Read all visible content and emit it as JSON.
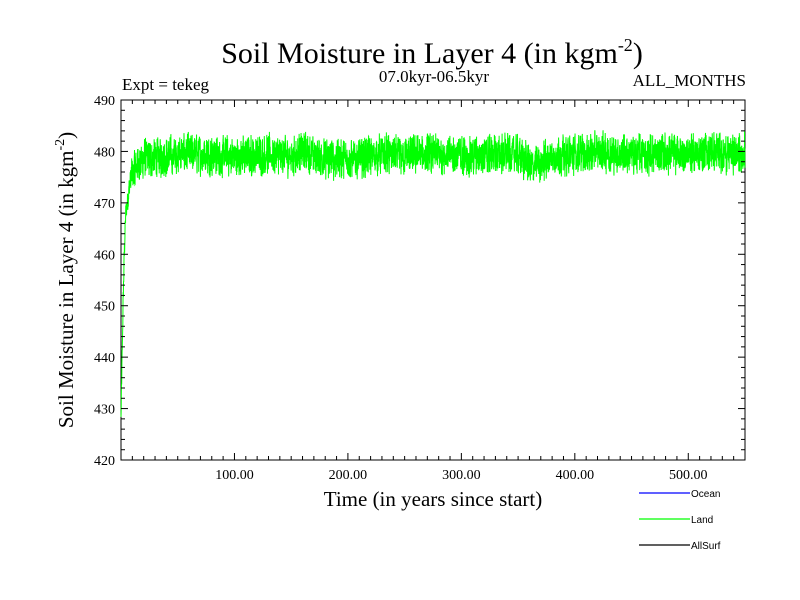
{
  "chart_data": {
    "type": "line",
    "title": "Soil Moisture in Layer 4 (in kgm",
    "title_superscript": "-2",
    "title_close": ")",
    "expt_label": "Expt = tekeg",
    "period_label": "07.0kyr-06.5kyr",
    "months_label": "ALL_MONTHS",
    "xlabel": "Time (in years since start)",
    "ylabel": "Soil Moisture in Layer 4 (in kgm",
    "ylabel_superscript": "-2",
    "ylabel_close": ")",
    "xlim": [
      0,
      550
    ],
    "ylim": [
      420,
      490
    ],
    "xticks": [
      {
        "value": 100,
        "label": "100.00"
      },
      {
        "value": 200,
        "label": "200.00"
      },
      {
        "value": 300,
        "label": "300.00"
      },
      {
        "value": 400,
        "label": "400.00"
      },
      {
        "value": 500,
        "label": "500.00"
      }
    ],
    "yticks": [
      {
        "value": 420,
        "label": "420"
      },
      {
        "value": 430,
        "label": "430"
      },
      {
        "value": 440,
        "label": "440"
      },
      {
        "value": 450,
        "label": "450"
      },
      {
        "value": 460,
        "label": "460"
      },
      {
        "value": 470,
        "label": "470"
      },
      {
        "value": 480,
        "label": "480"
      },
      {
        "value": 490,
        "label": "490"
      }
    ],
    "legend": [
      {
        "name": "Ocean",
        "color": "#0000ff"
      },
      {
        "name": "Land",
        "color": "#00ff00"
      },
      {
        "name": "AllSurf",
        "color": "#000000"
      }
    ],
    "series": [
      {
        "name": "Land",
        "color": "#00ff00",
        "x": [
          0,
          1,
          2,
          3,
          4,
          6,
          8,
          10,
          13,
          16,
          20,
          25,
          30,
          40,
          50,
          60,
          75,
          90,
          110,
          130,
          150,
          160,
          180,
          200,
          215,
          230,
          250,
          270,
          290,
          310,
          330,
          350,
          362,
          380,
          400,
          420,
          440,
          460,
          480,
          500,
          520,
          540,
          550
        ],
        "values": [
          428,
          440,
          452,
          461,
          467,
          471,
          474,
          476,
          477,
          478,
          478.5,
          478.5,
          479,
          479,
          479.5,
          479.5,
          479.5,
          479,
          479,
          479.5,
          479,
          480,
          478.5,
          478.5,
          479,
          479.5,
          479,
          479.5,
          479.5,
          479,
          479.5,
          479.5,
          477,
          479,
          479.5,
          480,
          479.5,
          479.5,
          479.5,
          479.5,
          480,
          479.5,
          479.5
        ],
        "noise_amplitude": 4.5
      }
    ]
  }
}
